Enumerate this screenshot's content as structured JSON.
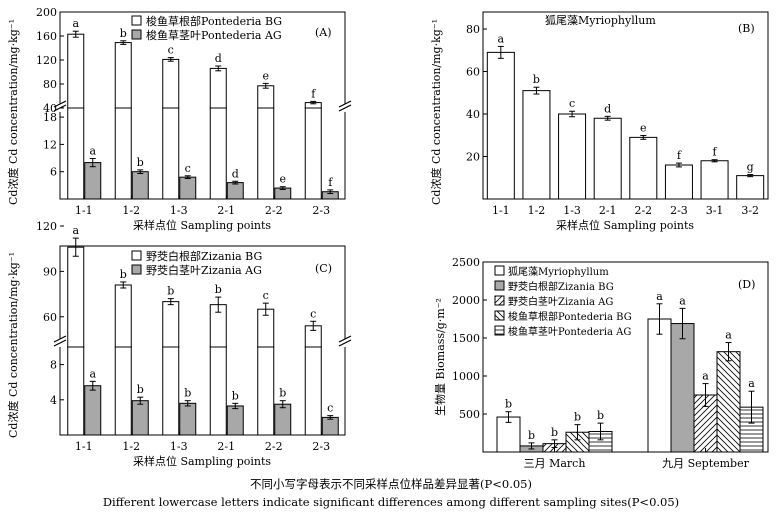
{
  "figure": {
    "caption_cn": "不同小写字母表示不同采样点位样品差异显著(P<0.05)",
    "caption_en": "Different lowercase letters indicate significant differences among different sampling sites(P<0.05)"
  },
  "panel_a": {
    "tag": "(A)",
    "ylabel": "Cd浓度 Cd concentration/mg·kg⁻¹",
    "xlabel": "采样点位 Sampling points",
    "legend": [
      "梭鱼草根部Pontederia BG",
      "梭鱼草茎叶Pontederia AG"
    ],
    "y_ticks_upper": [
      "200",
      "160",
      "120",
      "80",
      "40"
    ],
    "y_ticks_lower": [
      "18",
      "12",
      "6"
    ]
  },
  "panel_b": {
    "tag": "(B)",
    "ylabel": "Cd浓度 Cd concentration/mg·kg⁻¹",
    "xlabel": "采样点位 Sampling points",
    "legend": [
      "狐尾藻Myriophyllum"
    ],
    "y_ticks": [
      "80",
      "60",
      "40",
      "20"
    ]
  },
  "panel_c": {
    "tag": "(C)",
    "ylabel": "Cd浓度 Cd concentration/mg·kg⁻¹",
    "xlabel": "采样点位 Sampling points",
    "legend": [
      "野茭白根部Zizania BG",
      "野茭白茎叶Zizania AG"
    ],
    "y_ticks_upper": [
      "120",
      "90",
      "60"
    ],
    "y_ticks_lower": [
      "8",
      "4"
    ]
  },
  "panel_d": {
    "tag": "(D)",
    "ylabel": "生物量 Biomass/g·m⁻²",
    "xlabel": "",
    "legend": [
      "狐尾藻Myriophyllum",
      "野茭白根部Zizania BG",
      "野茭白茎叶Zizania AG",
      "梭鱼草根部Pontederia BG",
      "梭鱼草茎叶Pontederia AG"
    ],
    "y_ticks": [
      "2500",
      "2000",
      "1500",
      "1000",
      "500"
    ]
  },
  "chart_data": [
    {
      "type": "bar",
      "panel": "A",
      "categories": [
        "1-1",
        "1-2",
        "1-3",
        "2-1",
        "2-2",
        "2-3"
      ],
      "axis_break": {
        "lower_range": [
          0,
          20
        ],
        "upper_range": [
          40,
          200
        ]
      },
      "series": [
        {
          "name": "梭鱼草根部Pontederia BG",
          "values": [
            163,
            149,
            121,
            106,
            77,
            49
          ],
          "errors": [
            5,
            3,
            3,
            4,
            4,
            2
          ],
          "letters": [
            "a",
            "b",
            "c",
            "d",
            "e",
            "f"
          ]
        },
        {
          "name": "梭鱼草茎叶Pontederia AG",
          "values": [
            8.0,
            6.0,
            4.8,
            3.6,
            2.4,
            1.6
          ],
          "errors": [
            0.9,
            0.4,
            0.3,
            0.3,
            0.3,
            0.4
          ],
          "letters": [
            "a",
            "b",
            "c",
            "d",
            "e",
            "f"
          ]
        }
      ],
      "ylabel": "Cd浓度 Cd concentration/mg·kg⁻¹",
      "xlabel": "采样点位 Sampling points"
    },
    {
      "type": "bar",
      "panel": "B",
      "categories": [
        "1-1",
        "1-2",
        "1-3",
        "2-1",
        "2-2",
        "2-3",
        "3-1",
        "3-2"
      ],
      "ylim": [
        0,
        88
      ],
      "series": [
        {
          "name": "狐尾藻Myriophyllum",
          "values": [
            69,
            51,
            40,
            38,
            29,
            16,
            18,
            11
          ],
          "errors": [
            2.8,
            1.6,
            1.3,
            0.9,
            0.9,
            0.9,
            0.5,
            0.5
          ],
          "letters": [
            "a",
            "b",
            "c",
            "d",
            "e",
            "f",
            "f",
            "g"
          ]
        }
      ],
      "ylabel": "Cd浓度 Cd concentration/mg·kg⁻¹",
      "xlabel": "采样点位 Sampling points"
    },
    {
      "type": "bar",
      "panel": "C",
      "categories": [
        "1-1",
        "1-2",
        "1-3",
        "2-1",
        "2-2",
        "2-3"
      ],
      "axis_break": {
        "lower_range": [
          0,
          10
        ],
        "upper_range": [
          40,
          120
        ]
      },
      "series": [
        {
          "name": "野茭白根部Zizania BG",
          "values": [
            106,
            81,
            70,
            68,
            65,
            54
          ],
          "errors": [
            6,
            2,
            2,
            5,
            4,
            3
          ],
          "letters": [
            "a",
            "b",
            "b",
            "b",
            "c",
            "c"
          ]
        },
        {
          "name": "野茭白茎叶Zizania AG",
          "values": [
            5.6,
            3.9,
            3.6,
            3.3,
            3.5,
            2.0
          ],
          "errors": [
            0.5,
            0.4,
            0.3,
            0.3,
            0.4,
            0.2
          ],
          "letters": [
            "a",
            "b",
            "b",
            "b",
            "b",
            "c"
          ]
        }
      ],
      "ylabel": "Cd浓度 Cd concentration/mg·kg⁻¹",
      "xlabel": "采样点位 Sampling points"
    },
    {
      "type": "bar",
      "panel": "D",
      "categories": [
        "三月 March",
        "九月 September"
      ],
      "ylim": [
        0,
        2500
      ],
      "series": [
        {
          "name": "狐尾藻Myriophyllum",
          "values": [
            460,
            1750
          ],
          "errors": [
            70,
            200
          ],
          "letters": [
            "b",
            "a"
          ]
        },
        {
          "name": "野茭白根部Zizania BG",
          "values": [
            80,
            1690
          ],
          "errors": [
            40,
            200
          ],
          "letters": [
            "b",
            "a"
          ]
        },
        {
          "name": "野茭白茎叶Zizania AG",
          "values": [
            110,
            750
          ],
          "errors": [
            50,
            150
          ],
          "letters": [
            "b",
            "a"
          ]
        },
        {
          "name": "梭鱼草根部Pontederia BG",
          "values": [
            260,
            1320
          ],
          "errors": [
            100,
            120
          ],
          "letters": [
            "b",
            "a"
          ]
        },
        {
          "name": "梭鱼草茎叶Pontederia AG",
          "values": [
            270,
            590
          ],
          "errors": [
            110,
            210
          ],
          "letters": [
            "b",
            "a"
          ]
        }
      ],
      "ylabel": "生物量 Biomass/g·m⁻²"
    }
  ]
}
